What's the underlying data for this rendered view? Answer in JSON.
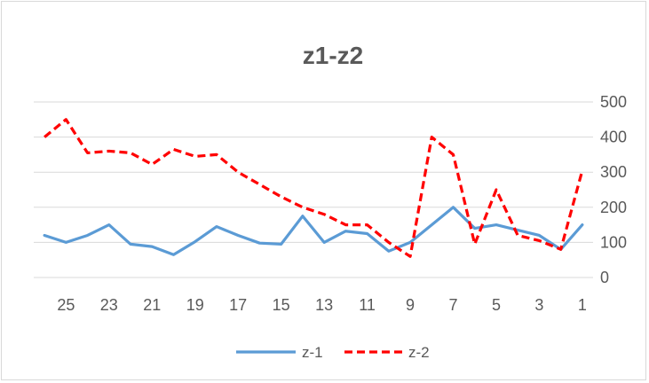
{
  "chart_data": {
    "type": "line",
    "title": "z1-z2",
    "xlabel": "",
    "ylabel": "",
    "x": [
      26,
      25,
      24,
      23,
      22,
      21,
      20,
      19,
      18,
      17,
      16,
      15,
      14,
      13,
      12,
      11,
      10,
      9,
      8,
      7,
      6,
      5,
      4,
      3,
      2,
      1
    ],
    "x_tick_labels": [
      "25",
      "23",
      "21",
      "19",
      "17",
      "15",
      "13",
      "11",
      "9",
      "7",
      "5",
      "3",
      "1"
    ],
    "y_tick_labels": [
      "0",
      "100",
      "200",
      "300",
      "400",
      "500"
    ],
    "ylim": [
      0,
      500
    ],
    "y_axis_side": "right",
    "x_axis": "reversed",
    "grid": true,
    "legend_position": "bottom",
    "series": [
      {
        "name": "z-1",
        "color": "#5b9bd5",
        "dash": "solid",
        "values": [
          120,
          100,
          120,
          150,
          95,
          88,
          65,
          102,
          145,
          120,
          98,
          95,
          175,
          100,
          132,
          125,
          75,
          100,
          150,
          200,
          140,
          150,
          135,
          120,
          80,
          150
        ]
      },
      {
        "name": "z-2",
        "color": "#ff0000",
        "dash": "dashed",
        "values": [
          400,
          450,
          355,
          360,
          355,
          322,
          365,
          345,
          350,
          300,
          265,
          230,
          200,
          180,
          150,
          150,
          100,
          60,
          400,
          350,
          95,
          250,
          120,
          105,
          80,
          305
        ]
      }
    ]
  }
}
